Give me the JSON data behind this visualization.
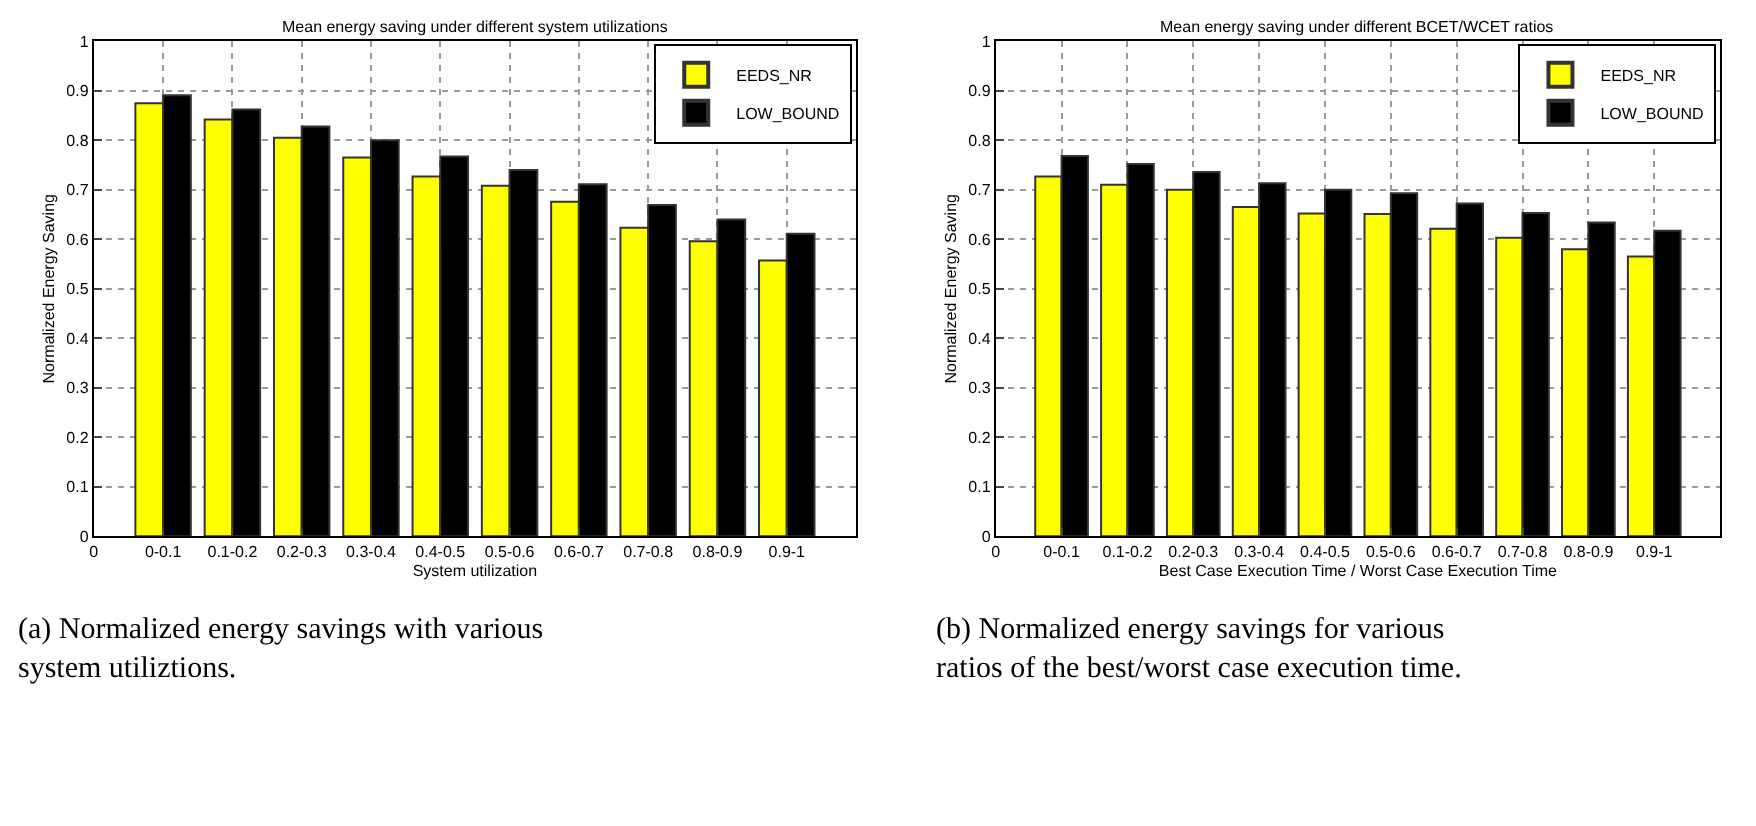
{
  "chart_data": [
    {
      "type": "bar",
      "title": "Mean energy saving under different system utilizations",
      "xlabel": "System utilization",
      "ylabel": "Normalized Energy Saving",
      "categories": [
        "0",
        "0-0.1",
        "0.1-0.2",
        "0.2-0.3",
        "0.3-0.4",
        "0.4-0.5",
        "0.5-0.6",
        "0.6-0.7",
        "0.7-0.8",
        "0.8-0.9",
        "0.9-1",
        null
      ],
      "series": [
        {
          "name": "EEDS_NR",
          "color": "#ffff00",
          "values": [
            null,
            0.875,
            0.842,
            0.805,
            0.765,
            0.727,
            0.708,
            0.676,
            0.623,
            0.596,
            0.557,
            null
          ]
        },
        {
          "name": "LOW_BOUND",
          "color": "#000000",
          "values": [
            null,
            0.891,
            0.862,
            0.828,
            0.8,
            0.767,
            0.74,
            0.711,
            0.669,
            0.64,
            0.611,
            null
          ]
        }
      ],
      "ylim": [
        0,
        1
      ],
      "yticks": [
        0,
        0.1,
        0.2,
        0.3,
        0.4,
        0.5,
        0.6,
        0.7,
        0.8,
        0.9,
        1
      ],
      "grid": true,
      "legend": "top right",
      "annotations": [
        "(a) Normalized energy savings with various system utiliztions."
      ]
    },
    {
      "type": "bar",
      "title": "Mean energy saving under different BCET/WCET ratios",
      "xlabel": "Best Case Execution Time / Worst Case Execution Time",
      "ylabel": "Normalized Energy Saving",
      "categories": [
        "0",
        "0-0.1",
        "0.1-0.2",
        "0.2-0.3",
        "0.3-0.4",
        "0.4-0.5",
        "0.5-0.6",
        "0.6-0.7",
        "0.7-0.8",
        "0.8-0.9",
        "0.9-1",
        null
      ],
      "series": [
        {
          "name": "EEDS_NR",
          "color": "#ffff00",
          "values": [
            null,
            0.727,
            0.71,
            0.7,
            0.665,
            0.652,
            0.651,
            0.621,
            0.603,
            0.58,
            0.565,
            null
          ]
        },
        {
          "name": "LOW_BOUND",
          "color": "#000000",
          "values": [
            null,
            0.768,
            0.752,
            0.736,
            0.713,
            0.7,
            0.693,
            0.672,
            0.653,
            0.634,
            0.617,
            null
          ]
        }
      ],
      "ylim": [
        0,
        1
      ],
      "yticks": [
        0,
        0.1,
        0.2,
        0.3,
        0.4,
        0.5,
        0.6,
        0.7,
        0.8,
        0.9,
        1
      ],
      "grid": true,
      "legend": "top right",
      "annotations": [
        "(b) Normalized energy savings for various ratios of the best/worst case execution time."
      ]
    }
  ]
}
